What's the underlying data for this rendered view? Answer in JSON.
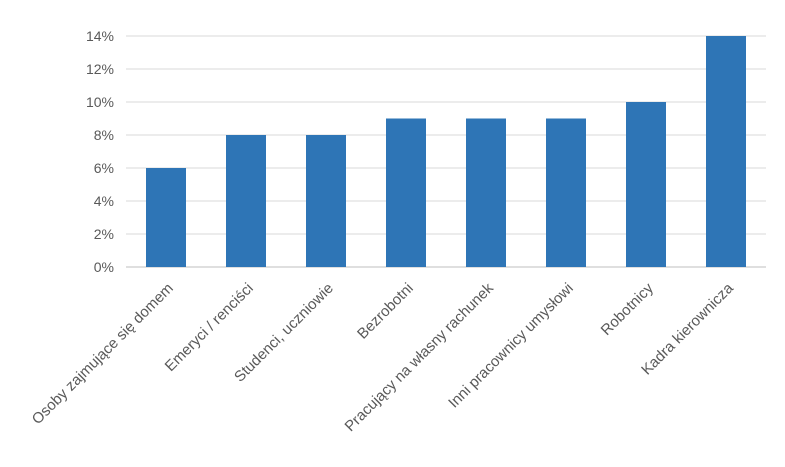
{
  "chart_data": {
    "type": "bar",
    "categories": [
      "Osoby zajmujące się domem",
      "Emeryci / renciści",
      "Studenci, uczniowie",
      "Bezrobotni",
      "Pracujący na własny rachunek",
      "Inni pracownicy umysłowi",
      "Robotnicy",
      "Kadra kierownicza"
    ],
    "values": [
      6,
      8,
      8,
      9,
      9,
      9,
      10,
      14
    ],
    "y_tick_labels": [
      "0%",
      "2%",
      "4%",
      "6%",
      "8%",
      "10%",
      "12%",
      "14%"
    ],
    "ylim": [
      0,
      14
    ],
    "y_unit": "%",
    "grid": true,
    "legend": "none",
    "colors": {
      "bar": "#2E75B6",
      "grid": "#D9D9D9",
      "text": "#595959"
    }
  }
}
